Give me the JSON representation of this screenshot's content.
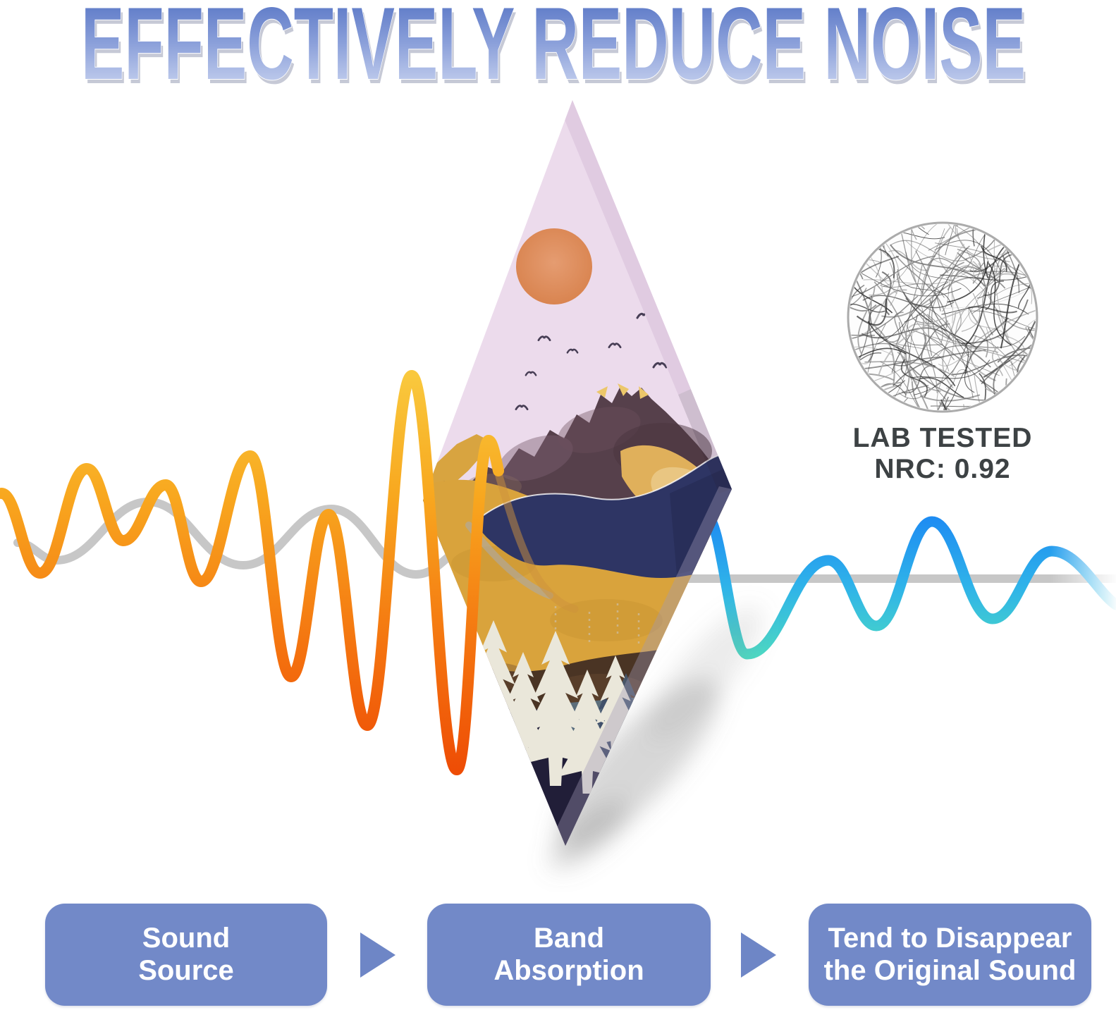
{
  "title": {
    "text": "EFFECTIVELY REDUCE NOISE",
    "gradient_top": "#4b6bc0",
    "gradient_bottom": "#d6def4"
  },
  "lab_badge": {
    "line1": "LAB TESTED",
    "line2": "NRC: 0.92",
    "texture_icon": "fiber-texture",
    "text_color": "#3d4244"
  },
  "flow": {
    "button_color": "#7289c8",
    "arrow_color": "#6e86c6",
    "text_color": "#ffffff",
    "arrow_icon": "right-triangle-arrow",
    "steps": [
      {
        "line1": "Sound",
        "line2": "Source"
      },
      {
        "line1": "Band",
        "line2": "Absorption"
      },
      {
        "line1": "Tend to Disappear",
        "line2": "the Original Sound"
      }
    ]
  },
  "waves": {
    "incoming_icon": "loud-sound-wave",
    "incoming_colors": [
      "#f9c83d",
      "#f8a81f",
      "#f4720f",
      "#ee4d05"
    ],
    "reference_wave_color": "#c7c7c7",
    "outgoing_icon": "calm-sound-wave",
    "outgoing_colors": [
      "#1e8cf2",
      "#2fb3e9",
      "#4ad9c4"
    ]
  },
  "panel": {
    "icon": "acoustic-panel-diamond",
    "artwork": "mountain-sunset-landscape",
    "sky_color": "#ecdbec",
    "sun_color": "#d8824d",
    "navy_color": "#2e3564",
    "gold_color": "#d9a33c"
  }
}
